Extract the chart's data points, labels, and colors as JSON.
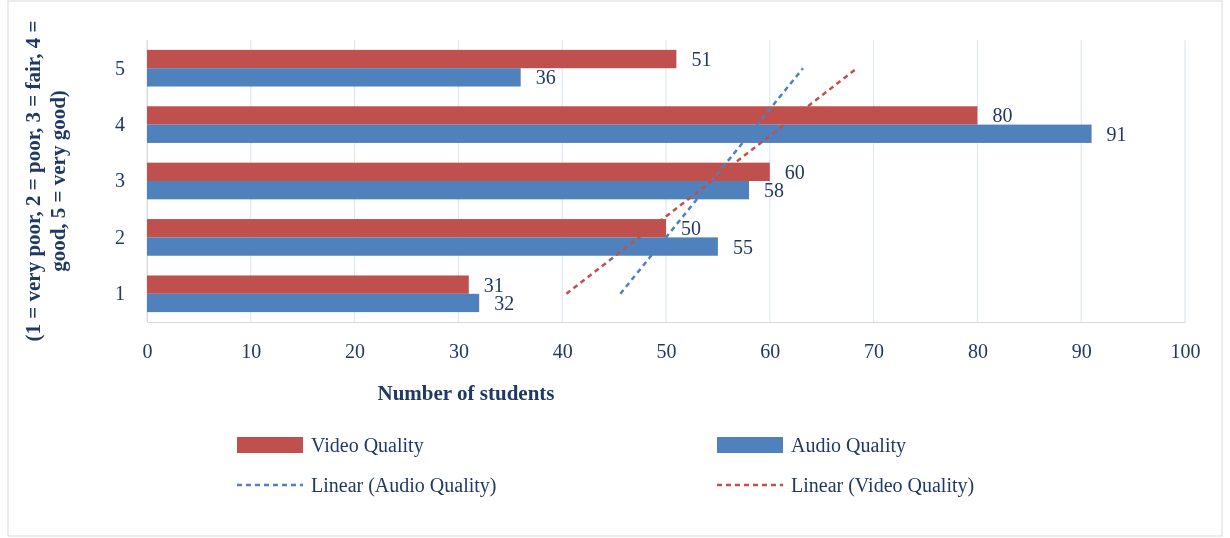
{
  "chart_data": {
    "type": "bar",
    "orientation": "horizontal",
    "xlabel": "Number of students",
    "ylabel": "(1 = very poor, 2 = poor, 3 = fair, 4 = good, 5 = very good)",
    "categories": [
      "5",
      "4",
      "3",
      "2",
      "1"
    ],
    "series": [
      {
        "name": "Video Quality",
        "color": "#c0504d",
        "values": [
          51,
          80,
          60,
          50,
          31
        ],
        "value_labels": [
          "51",
          "80",
          "60",
          "50",
          "31"
        ]
      },
      {
        "name": "Audio Quality",
        "color": "#4f81bd",
        "values": [
          36,
          91,
          58,
          55,
          32
        ],
        "value_labels": [
          "36",
          "91",
          "58",
          "55",
          "32"
        ]
      },
      {
        "name": "Linear (Audio Quality)",
        "type": "line",
        "color": "#4f81bd",
        "line_style": "dashed",
        "x": [
          "1",
          "5"
        ],
        "values": [
          45.6,
          63.2
        ]
      },
      {
        "name": "Linear (Video Quality)",
        "type": "line",
        "color": "#c0504d",
        "line_style": "dashed",
        "x": [
          "1",
          "5"
        ],
        "values": [
          40.4,
          68.4
        ]
      }
    ],
    "xlim": [
      0,
      100
    ],
    "xticks": [
      0,
      10,
      20,
      30,
      40,
      50,
      60,
      70,
      80,
      90,
      100
    ],
    "grid": "x",
    "legend": "bottom",
    "marker": "none"
  }
}
